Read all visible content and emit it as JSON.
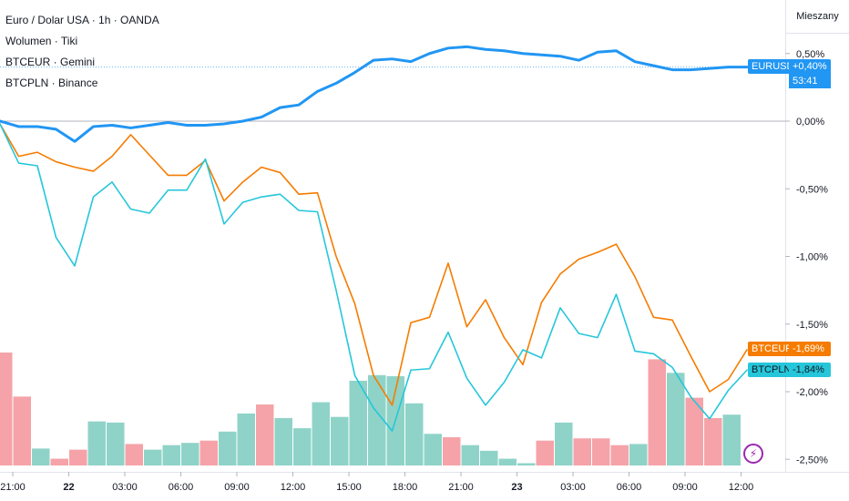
{
  "legend": {
    "main": "Euro / Dolar USA · 1h · OANDA",
    "volume": "Wolumen · Tiki",
    "btceur": "BTCEUR · Gemini",
    "btcpln": "BTCPLN · Binance"
  },
  "scale_mode_button": "Mieszany",
  "price_tags": {
    "eurusd_symbol": "EURUSD",
    "eurusd_value": "+0,40%",
    "eurusd_timer": "53:41",
    "btceur_symbol": "BTCEUR",
    "btceur_value": "-1,69%",
    "btcpln_symbol": "BTCPLN",
    "btcpln_value": "-1,84%"
  },
  "colors": {
    "eurusd": "#2196f3",
    "btceur": "#f57c00",
    "btcpln": "#26c6da",
    "vol_up": "#8fd3c8",
    "vol_down": "#f5a3a8",
    "badge_accent": "#9c27b0"
  },
  "chart_data": {
    "type": "line",
    "ylim": [
      -2.6,
      0.6
    ],
    "y_ticks": [
      {
        "value": 0.5,
        "label": "0,50%"
      },
      {
        "value": 0.0,
        "label": "0,00%"
      },
      {
        "value": -0.5,
        "label": "-0,50%"
      },
      {
        "value": -1.0,
        "label": "-1,00%"
      },
      {
        "value": -1.5,
        "label": "-1,50%"
      },
      {
        "value": -2.0,
        "label": "-2,00%"
      },
      {
        "value": -2.5,
        "label": "-2,50%"
      }
    ],
    "x_ticks": [
      {
        "x": 0,
        "label": "21:00",
        "bold": false
      },
      {
        "x": 3,
        "label": "22",
        "bold": true
      },
      {
        "x": 6,
        "label": "03:00",
        "bold": false
      },
      {
        "x": 9,
        "label": "06:00",
        "bold": false
      },
      {
        "x": 12,
        "label": "09:00",
        "bold": false
      },
      {
        "x": 15,
        "label": "12:00",
        "bold": false
      },
      {
        "x": 18,
        "label": "15:00",
        "bold": false
      },
      {
        "x": 21,
        "label": "18:00",
        "bold": false
      },
      {
        "x": 24,
        "label": "21:00",
        "bold": false
      },
      {
        "x": 27,
        "label": "23",
        "bold": true
      },
      {
        "x": 30,
        "label": "03:00",
        "bold": false
      },
      {
        "x": 33,
        "label": "06:00",
        "bold": false
      },
      {
        "x": 36,
        "label": "09:00",
        "bold": false
      },
      {
        "x": 39,
        "label": "12:00",
        "bold": false
      }
    ],
    "series": [
      {
        "key": "eurusd",
        "values": [
          0.0,
          -0.04,
          -0.04,
          -0.06,
          -0.15,
          -0.04,
          -0.03,
          -0.05,
          -0.03,
          -0.01,
          -0.03,
          -0.03,
          -0.02,
          0.0,
          0.03,
          0.1,
          0.12,
          0.22,
          0.28,
          0.36,
          0.45,
          0.46,
          0.44,
          0.5,
          0.54,
          0.55,
          0.53,
          0.52,
          0.5,
          0.49,
          0.48,
          0.45,
          0.51,
          0.52,
          0.44,
          0.41,
          0.38,
          0.38,
          0.39,
          0.4,
          0.4
        ]
      },
      {
        "key": "btceur",
        "values": [
          -0.02,
          -0.26,
          -0.23,
          -0.3,
          -0.34,
          -0.37,
          -0.26,
          -0.1,
          -0.25,
          -0.4,
          -0.4,
          -0.29,
          -0.59,
          -0.45,
          -0.34,
          -0.38,
          -0.54,
          -0.53,
          -1.0,
          -1.35,
          -1.88,
          -2.1,
          -1.49,
          -1.45,
          -1.05,
          -1.52,
          -1.32,
          -1.6,
          -1.8,
          -1.34,
          -1.13,
          -1.02,
          -0.97,
          -0.91,
          -1.15,
          -1.45,
          -1.47,
          -1.74,
          -2.0,
          -1.91,
          -1.69
        ]
      },
      {
        "key": "btcpln",
        "values": [
          -0.02,
          -0.31,
          -0.33,
          -0.86,
          -1.07,
          -0.56,
          -0.45,
          -0.65,
          -0.68,
          -0.51,
          -0.51,
          -0.28,
          -0.76,
          -0.6,
          -0.56,
          -0.54,
          -0.66,
          -0.67,
          -1.25,
          -1.88,
          -2.12,
          -2.29,
          -1.84,
          -1.83,
          -1.56,
          -1.9,
          -2.1,
          -1.93,
          -1.69,
          -1.75,
          -1.38,
          -1.57,
          -1.6,
          -1.28,
          -1.7,
          -1.72,
          -1.82,
          -2.04,
          -2.2,
          -1.99,
          -1.84
        ]
      }
    ],
    "volume": {
      "max": 100,
      "bars": [
        {
          "value": 100,
          "dir": "down"
        },
        {
          "value": 61,
          "dir": "down"
        },
        {
          "value": 15,
          "dir": "up"
        },
        {
          "value": 6,
          "dir": "down"
        },
        {
          "value": 14,
          "dir": "down"
        },
        {
          "value": 39,
          "dir": "up"
        },
        {
          "value": 38,
          "dir": "up"
        },
        {
          "value": 19,
          "dir": "down"
        },
        {
          "value": 14,
          "dir": "up"
        },
        {
          "value": 18,
          "dir": "up"
        },
        {
          "value": 20,
          "dir": "up"
        },
        {
          "value": 22,
          "dir": "down"
        },
        {
          "value": 30,
          "dir": "up"
        },
        {
          "value": 46,
          "dir": "up"
        },
        {
          "value": 54,
          "dir": "down"
        },
        {
          "value": 42,
          "dir": "up"
        },
        {
          "value": 33,
          "dir": "up"
        },
        {
          "value": 56,
          "dir": "up"
        },
        {
          "value": 43,
          "dir": "up"
        },
        {
          "value": 75,
          "dir": "up"
        },
        {
          "value": 80,
          "dir": "up"
        },
        {
          "value": 79,
          "dir": "up"
        },
        {
          "value": 55,
          "dir": "up"
        },
        {
          "value": 28,
          "dir": "up"
        },
        {
          "value": 25,
          "dir": "down"
        },
        {
          "value": 18,
          "dir": "up"
        },
        {
          "value": 13,
          "dir": "up"
        },
        {
          "value": 6,
          "dir": "up"
        },
        {
          "value": 2,
          "dir": "up"
        },
        {
          "value": 22,
          "dir": "down"
        },
        {
          "value": 38,
          "dir": "up"
        },
        {
          "value": 24,
          "dir": "down"
        },
        {
          "value": 24,
          "dir": "down"
        },
        {
          "value": 18,
          "dir": "down"
        },
        {
          "value": 19,
          "dir": "up"
        },
        {
          "value": 94,
          "dir": "down"
        },
        {
          "value": 82,
          "dir": "up"
        },
        {
          "value": 60,
          "dir": "down"
        },
        {
          "value": 42,
          "dir": "down"
        },
        {
          "value": 45,
          "dir": "up"
        }
      ]
    }
  }
}
